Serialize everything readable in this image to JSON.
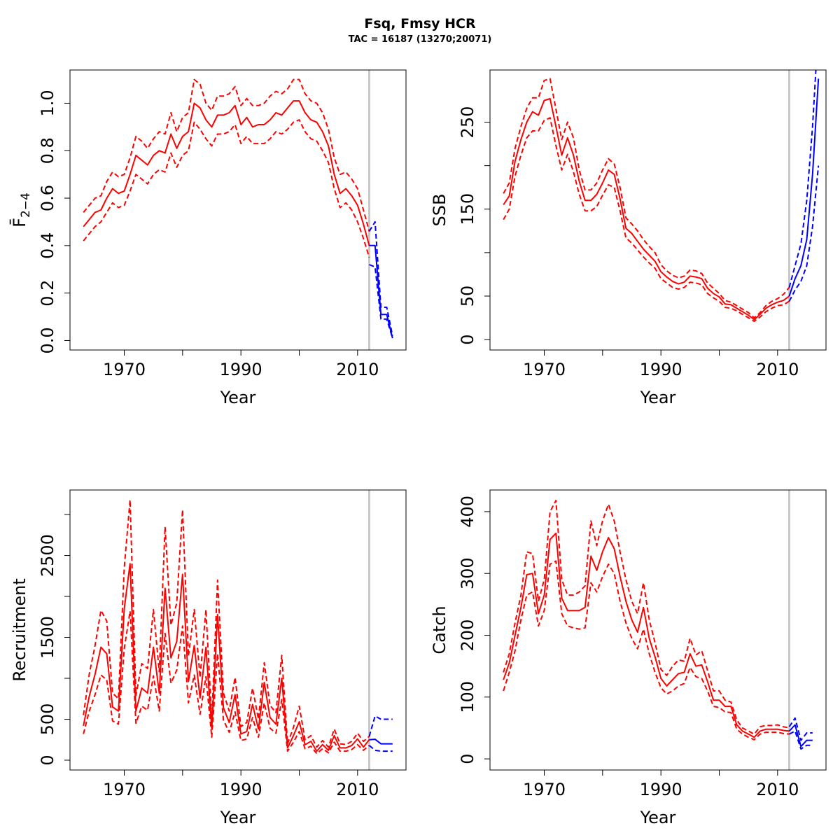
{
  "title": "Fsq, Fmsy HCR",
  "subtitle": "TAC = 16187 (13270;20071)",
  "colors": {
    "history": "#ff0000",
    "forecast": "#0000ff",
    "refline": "#c8c8c8",
    "axis": "#000000"
  },
  "chart_data": [
    {
      "type": "line",
      "ylabel": "F̄",
      "ylabel_sub": "2−4",
      "xlabel": "Year",
      "xlim": [
        1960.7,
        2018.3
      ],
      "ylim": [
        -0.04,
        1.14
      ],
      "xticks": [
        1970,
        1980,
        1990,
        2000,
        2010
      ],
      "xtick_labels": [
        "1970",
        "",
        "1990",
        "",
        "2010"
      ],
      "yticks": [
        0.0,
        0.2,
        0.4,
        0.6,
        0.8,
        1.0
      ],
      "ytick_labels": [
        "0.0",
        "0.2",
        "0.4",
        "0.6",
        "0.8",
        "1.0"
      ],
      "vline": 2012,
      "history": {
        "x": [
          1963,
          1964,
          1965,
          1966,
          1967,
          1968,
          1969,
          1970,
          1971,
          1972,
          1973,
          1974,
          1975,
          1976,
          1977,
          1978,
          1979,
          1980,
          1981,
          1982,
          1983,
          1984,
          1985,
          1986,
          1987,
          1988,
          1989,
          1990,
          1991,
          1992,
          1993,
          1994,
          1995,
          1996,
          1997,
          1998,
          1999,
          2000,
          2001,
          2002,
          2003,
          2004,
          2005,
          2006,
          2007,
          2008,
          2009,
          2010,
          2011,
          2012
        ],
        "mid": [
          0.48,
          0.51,
          0.54,
          0.55,
          0.6,
          0.64,
          0.62,
          0.63,
          0.7,
          0.78,
          0.76,
          0.74,
          0.78,
          0.8,
          0.79,
          0.87,
          0.81,
          0.86,
          0.88,
          1.0,
          0.98,
          0.93,
          0.9,
          0.95,
          0.95,
          0.96,
          0.99,
          0.91,
          0.94,
          0.9,
          0.91,
          0.91,
          0.93,
          0.96,
          0.95,
          0.98,
          1.01,
          1.01,
          0.96,
          0.93,
          0.92,
          0.88,
          0.82,
          0.7,
          0.62,
          0.64,
          0.61,
          0.57,
          0.49,
          0.4
        ],
        "upper": [
          0.54,
          0.57,
          0.6,
          0.61,
          0.67,
          0.71,
          0.69,
          0.7,
          0.77,
          0.86,
          0.84,
          0.81,
          0.85,
          0.88,
          0.87,
          0.96,
          0.88,
          0.94,
          0.96,
          1.1,
          1.08,
          1.0,
          0.97,
          1.03,
          1.03,
          1.04,
          1.07,
          0.99,
          1.02,
          0.99,
          0.99,
          1.0,
          1.03,
          1.05,
          1.04,
          1.06,
          1.1,
          1.1,
          1.04,
          1.01,
          1.0,
          0.96,
          0.89,
          0.77,
          0.7,
          0.71,
          0.68,
          0.64,
          0.55,
          0.46
        ],
        "lower": [
          0.42,
          0.45,
          0.48,
          0.5,
          0.54,
          0.58,
          0.56,
          0.57,
          0.63,
          0.7,
          0.68,
          0.66,
          0.7,
          0.72,
          0.71,
          0.79,
          0.73,
          0.78,
          0.8,
          0.92,
          0.89,
          0.85,
          0.82,
          0.87,
          0.87,
          0.88,
          0.91,
          0.83,
          0.86,
          0.83,
          0.83,
          0.83,
          0.85,
          0.88,
          0.87,
          0.89,
          0.92,
          0.93,
          0.88,
          0.85,
          0.84,
          0.8,
          0.75,
          0.64,
          0.56,
          0.58,
          0.55,
          0.5,
          0.43,
          0.35
        ]
      },
      "forecast": {
        "x": [
          2012,
          2013,
          2014,
          2015,
          2016
        ],
        "mid": [
          0.4,
          0.4,
          0.11,
          0.11,
          0.01
        ],
        "upper": [
          0.46,
          0.5,
          0.14,
          0.14,
          0.02
        ],
        "lower": [
          0.32,
          0.31,
          0.09,
          0.09,
          0.01
        ]
      }
    },
    {
      "type": "line",
      "ylabel": "SSB",
      "xlabel": "Year",
      "xlim": [
        1960.7,
        2018.3
      ],
      "ylim": [
        -12,
        310
      ],
      "xticks": [
        1970,
        1980,
        1990,
        2000,
        2010
      ],
      "xtick_labels": [
        "1970",
        "",
        "1990",
        "",
        "2010"
      ],
      "yticks": [
        0,
        50,
        100,
        150,
        200,
        250
      ],
      "ytick_labels": [
        "0",
        "50",
        "",
        "150",
        "",
        "250"
      ],
      "vline": 2012,
      "history": {
        "x": [
          1963,
          1964,
          1965,
          1966,
          1967,
          1968,
          1969,
          1970,
          1971,
          1972,
          1973,
          1974,
          1975,
          1976,
          1977,
          1978,
          1979,
          1980,
          1981,
          1982,
          1983,
          1984,
          1985,
          1986,
          1987,
          1988,
          1989,
          1990,
          1991,
          1992,
          1993,
          1994,
          1995,
          1996,
          1997,
          1998,
          1999,
          2000,
          2001,
          2002,
          2003,
          2004,
          2005,
          2006,
          2007,
          2008,
          2009,
          2010,
          2011,
          2012
        ],
        "mid": [
          155,
          165,
          205,
          230,
          250,
          262,
          258,
          275,
          277,
          245,
          212,
          232,
          212,
          182,
          160,
          160,
          167,
          180,
          195,
          190,
          162,
          128,
          122,
          113,
          104,
          97,
          90,
          78,
          72,
          67,
          64,
          66,
          73,
          72,
          70,
          59,
          53,
          49,
          41,
          40,
          36,
          32,
          28,
          23,
          29,
          36,
          40,
          43,
          45,
          50
        ],
        "upper": [
          168,
          180,
          220,
          245,
          266,
          278,
          278,
          298,
          300,
          265,
          230,
          250,
          232,
          195,
          172,
          172,
          180,
          195,
          208,
          202,
          175,
          140,
          133,
          125,
          115,
          107,
          100,
          86,
          79,
          74,
          71,
          73,
          80,
          79,
          76,
          65,
          59,
          53,
          45,
          43,
          39,
          35,
          31,
          25,
          31,
          39,
          44,
          47,
          52,
          60
        ],
        "lower": [
          138,
          150,
          188,
          212,
          232,
          240,
          240,
          252,
          255,
          223,
          195,
          213,
          193,
          167,
          148,
          148,
          153,
          166,
          178,
          175,
          148,
          117,
          111,
          103,
          95,
          88,
          82,
          70,
          65,
          60,
          58,
          60,
          66,
          65,
          63,
          53,
          48,
          44,
          37,
          36,
          33,
          29,
          25,
          21,
          26,
          32,
          36,
          39,
          40,
          44
        ]
      },
      "forecast": {
        "x": [
          2012,
          2013,
          2014,
          2015,
          2016,
          2017
        ],
        "mid": [
          50,
          70,
          85,
          115,
          190,
          300
        ],
        "upper": [
          60,
          85,
          110,
          160,
          245,
          360
        ],
        "lower": [
          44,
          57,
          67,
          85,
          130,
          200
        ]
      }
    },
    {
      "type": "line",
      "ylabel": "Recruitment",
      "xlabel": "Year",
      "xlim": [
        1960.7,
        2018.3
      ],
      "ylim": [
        -120,
        3300
      ],
      "xticks": [
        1970,
        1980,
        1990,
        2000,
        2010
      ],
      "xtick_labels": [
        "1970",
        "",
        "1990",
        "",
        "2010"
      ],
      "yticks": [
        0,
        500,
        1000,
        1500,
        2000,
        2500,
        3000
      ],
      "ytick_labels": [
        "0",
        "500",
        "",
        "1500",
        "",
        "2500",
        ""
      ],
      "vline": 2012,
      "history": {
        "x": [
          1963,
          1964,
          1965,
          1966,
          1967,
          1968,
          1969,
          1970,
          1971,
          1972,
          1973,
          1974,
          1975,
          1976,
          1977,
          1978,
          1979,
          1980,
          1981,
          1982,
          1983,
          1984,
          1985,
          1986,
          1987,
          1988,
          1989,
          1990,
          1991,
          1992,
          1993,
          1994,
          1995,
          1996,
          1997,
          1998,
          1999,
          2000,
          2001,
          2002,
          2003,
          2004,
          2005,
          2006,
          2007,
          2008,
          2009,
          2010,
          2011,
          2012
        ],
        "mid": [
          420,
          780,
          1050,
          1380,
          1300,
          650,
          600,
          1850,
          2400,
          600,
          880,
          820,
          1380,
          820,
          2100,
          1250,
          1450,
          2270,
          960,
          1400,
          760,
          1380,
          380,
          1780,
          640,
          460,
          800,
          320,
          350,
          680,
          380,
          950,
          520,
          440,
          1000,
          150,
          300,
          470,
          190,
          230,
          110,
          190,
          120,
          300,
          150,
          150,
          180,
          260,
          160,
          250
        ],
        "upper": [
          550,
          1050,
          1400,
          1830,
          1700,
          820,
          750,
          2350,
          3180,
          790,
          1180,
          1120,
          1840,
          1080,
          2850,
          1650,
          1920,
          3060,
          1270,
          1840,
          1010,
          1840,
          490,
          2200,
          820,
          600,
          1010,
          410,
          460,
          880,
          500,
          1190,
          670,
          580,
          1280,
          200,
          400,
          660,
          250,
          300,
          160,
          240,
          160,
          380,
          200,
          190,
          230,
          330,
          230,
          290
        ],
        "lower": [
          320,
          600,
          800,
          1040,
          980,
          480,
          440,
          1360,
          1820,
          450,
          660,
          610,
          1030,
          600,
          1550,
          940,
          1100,
          1640,
          700,
          1040,
          560,
          1020,
          280,
          1300,
          490,
          340,
          590,
          240,
          260,
          520,
          280,
          700,
          390,
          330,
          740,
          110,
          220,
          350,
          140,
          170,
          80,
          140,
          90,
          220,
          110,
          110,
          130,
          190,
          120,
          180
        ]
      },
      "forecast": {
        "x": [
          2012,
          2013,
          2014,
          2015,
          2016
        ],
        "mid": [
          250,
          255,
          200,
          200,
          200
        ],
        "upper": [
          290,
          540,
          500,
          500,
          500
        ],
        "lower": [
          180,
          120,
          110,
          110,
          110
        ]
      }
    },
    {
      "type": "line",
      "ylabel": "Catch",
      "xlabel": "Year",
      "xlim": [
        1960.7,
        2018.3
      ],
      "ylim": [
        -18,
        435
      ],
      "xticks": [
        1970,
        1980,
        1990,
        2000,
        2010
      ],
      "xtick_labels": [
        "1970",
        "",
        "1990",
        "",
        "2010"
      ],
      "yticks": [
        0,
        100,
        200,
        300,
        400
      ],
      "ytick_labels": [
        "0",
        "100",
        "200",
        "300",
        "400"
      ],
      "vline": 2012,
      "history": {
        "x": [
          1963,
          1964,
          1965,
          1966,
          1967,
          1968,
          1969,
          1970,
          1971,
          1972,
          1973,
          1974,
          1975,
          1976,
          1977,
          1978,
          1979,
          1980,
          1981,
          1982,
          1983,
          1984,
          1985,
          1986,
          1987,
          1988,
          1989,
          1990,
          1991,
          1992,
          1993,
          1994,
          1995,
          1996,
          1997,
          1998,
          1999,
          2000,
          2001,
          2002,
          2003,
          2004,
          2005,
          2006,
          2007,
          2008,
          2009,
          2010,
          2011,
          2012
        ],
        "mid": [
          128,
          155,
          200,
          245,
          298,
          300,
          235,
          265,
          355,
          365,
          260,
          240,
          240,
          240,
          245,
          328,
          305,
          335,
          358,
          340,
          295,
          255,
          225,
          205,
          245,
          195,
          165,
          130,
          118,
          128,
          138,
          140,
          170,
          150,
          152,
          125,
          95,
          95,
          85,
          85,
          55,
          45,
          40,
          35,
          45,
          48,
          48,
          48,
          46,
          45
        ],
        "upper": [
          140,
          170,
          220,
          265,
          335,
          332,
          255,
          290,
          400,
          418,
          290,
          265,
          265,
          270,
          280,
          385,
          345,
          385,
          412,
          385,
          335,
          290,
          255,
          235,
          285,
          225,
          188,
          145,
          135,
          150,
          160,
          158,
          195,
          168,
          175,
          143,
          110,
          110,
          95,
          92,
          63,
          50,
          45,
          40,
          52,
          54,
          54,
          55,
          52,
          50
        ],
        "lower": [
          110,
          140,
          175,
          225,
          265,
          270,
          215,
          240,
          315,
          320,
          235,
          215,
          212,
          210,
          212,
          285,
          270,
          295,
          315,
          300,
          255,
          220,
          195,
          178,
          210,
          170,
          140,
          115,
          105,
          110,
          118,
          122,
          148,
          133,
          130,
          110,
          85,
          83,
          76,
          75,
          48,
          40,
          35,
          31,
          40,
          43,
          43,
          43,
          41,
          40
        ]
      },
      "forecast": {
        "x": [
          2012,
          2013,
          2014,
          2015,
          2016
        ],
        "mid": [
          45,
          55,
          20,
          30,
          30
        ],
        "upper": [
          52,
          66,
          30,
          42,
          42
        ],
        "lower": [
          40,
          45,
          16,
          22,
          22
        ]
      }
    }
  ]
}
